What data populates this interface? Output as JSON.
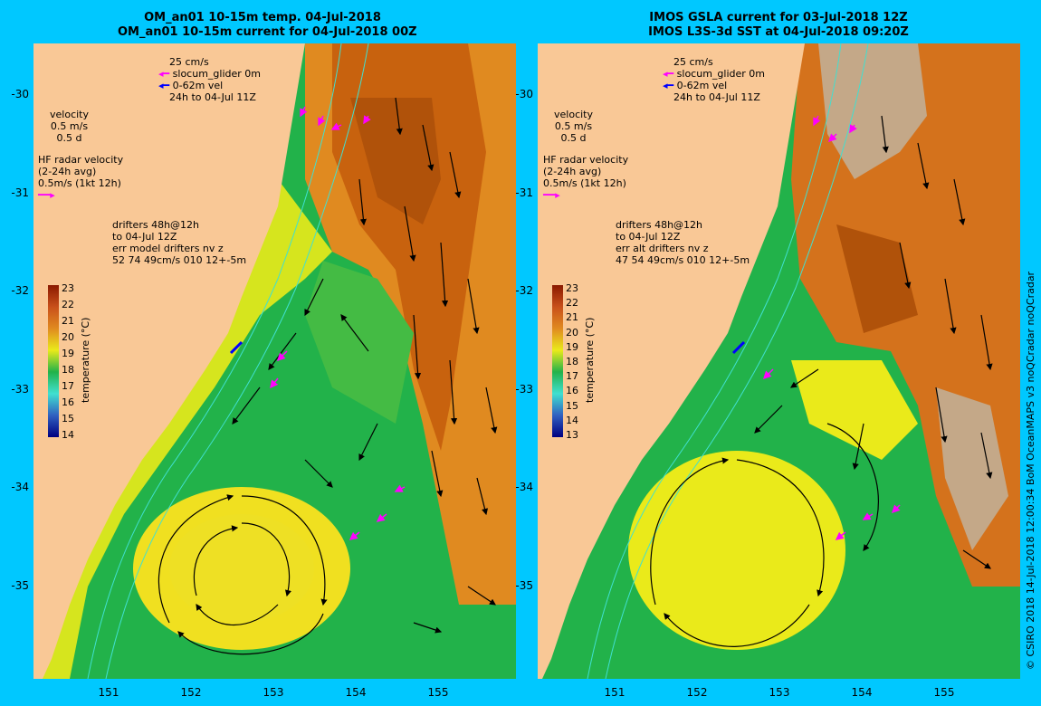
{
  "panels": [
    {
      "title1": "OM_an01 10-15m temp. 04-Jul-2018",
      "title2": "OM_an01 10-15m current for 04-Jul-2018 00Z",
      "legend_glider": [
        "25 cm/s",
        "slocum_glider 0m",
        "0-62m vel",
        "24h to 04-Jul 11Z"
      ],
      "legend_velocity": [
        "velocity",
        "0.5 m/s",
        "0.5 d"
      ],
      "legend_hf": [
        "HF radar velocity",
        "(2-24h avg)",
        "0.5m/s (1kt 12h)"
      ],
      "legend_drifters": [
        "drifters 48h@12h",
        "to 04-Jul 12Z",
        "err model drifters nv z",
        "52 74 49cm/s 010 12+-5m"
      ],
      "colorbar_ticks": [
        "23",
        "22",
        "21",
        "20",
        "19",
        "18",
        "17",
        "16",
        "15",
        "14"
      ],
      "colorbar_label": "temperature (°C)"
    },
    {
      "title1": "IMOS GSLA current for 03-Jul-2018 12Z",
      "title2": "IMOS L3S-3d SST at 04-Jul-2018 09:20Z",
      "legend_glider": [
        "25 cm/s",
        "slocum_glider 0m",
        "0-62m vel",
        "24h to 04-Jul 11Z"
      ],
      "legend_velocity": [
        "velocity",
        "0.5 m/s",
        "0.5 d"
      ],
      "legend_hf": [
        "HF radar velocity",
        "(2-24h avg)",
        "0.5m/s (1kt 12h)"
      ],
      "legend_drifters": [
        "drifters 48h@12h",
        "to 04-Jul 12Z",
        "err alt drifters nv z",
        "47 54 49cm/s 010 12+-5m"
      ],
      "colorbar_ticks": [
        "23",
        "22",
        "21",
        "20",
        "19",
        "18",
        "17",
        "16",
        "15",
        "14",
        "13"
      ],
      "colorbar_label": "temperature (°C)"
    }
  ],
  "y_ticks": [
    "-30",
    "-31",
    "-32",
    "-33",
    "-34",
    "-35"
  ],
  "x_ticks": [
    "151",
    "152",
    "153",
    "154",
    "155"
  ],
  "credit": "© CSIRO 2018  14-Jul-2018 12:00:34 BoM OceanMAPS v3 noQCradar noQCradar",
  "colors": {
    "background": "#00c8ff",
    "land": "#f9c896",
    "warm": "#d4721c",
    "hot": "#b0520a",
    "yellow": "#eaea1a",
    "green": "#22b24a",
    "cloud": "#c4a888",
    "isobath": "#40e0d0",
    "arrow": "#000000",
    "drifter": "#ff00ff",
    "glider": "#0000ff"
  }
}
